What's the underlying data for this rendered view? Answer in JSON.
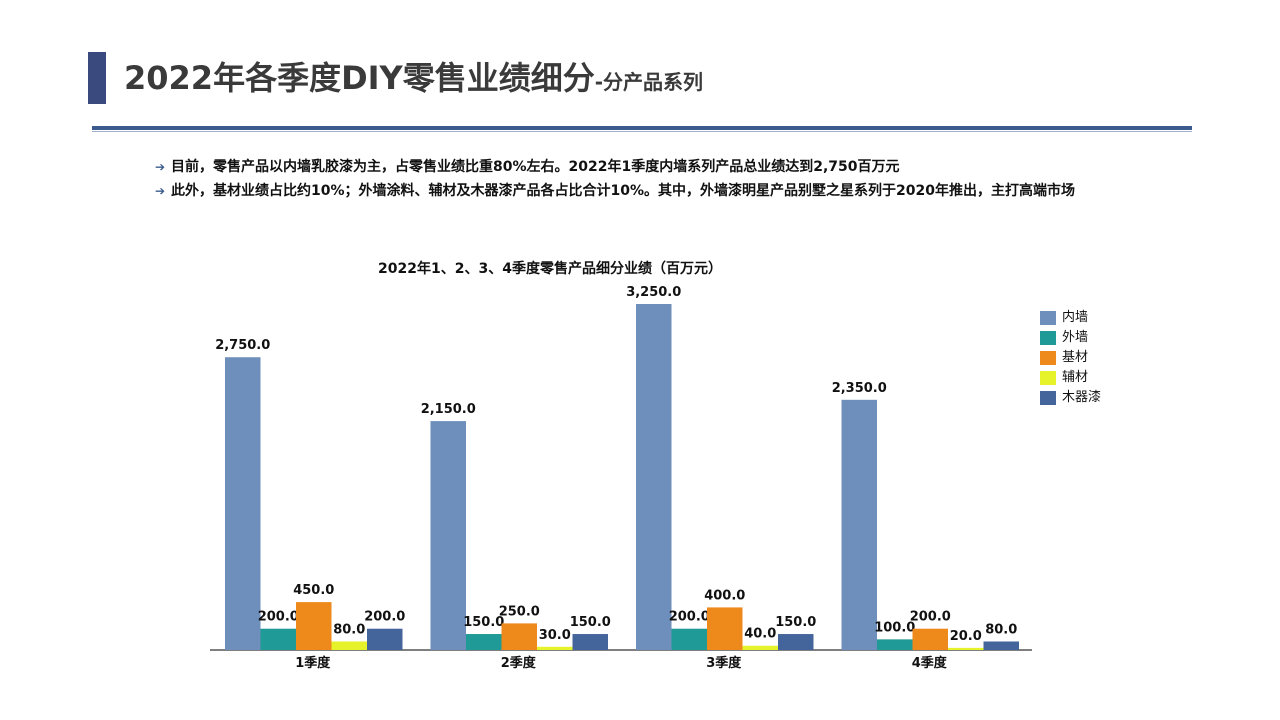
{
  "header": {
    "title_main": "2022年各季度DIY零售业绩细分",
    "title_sub": "-分产品系列"
  },
  "bullets": [
    "目前，零售产品以内墙乳胶漆为主，占零售业绩比重80%左右。2022年1季度内墙系列产品总业绩达到2,750百万元",
    "此外，基材业绩占比约10%；外墙涂料、辅材及木器漆产品各占比合计10%。其中，外墙漆明星产品别墅之星系列于2020年推出，主打高端市场"
  ],
  "chart_data": {
    "type": "bar",
    "title": "2022年1、2、3、4季度零售产品细分业绩（百万元）",
    "categories": [
      "1季度",
      "2季度",
      "3季度",
      "4季度"
    ],
    "series": [
      {
        "name": "内墙",
        "color": "#6e8fbb",
        "values": [
          2750,
          2150,
          3250,
          2350
        ]
      },
      {
        "name": "外墙",
        "color": "#1f9a96",
        "values": [
          200,
          150,
          200,
          100
        ]
      },
      {
        "name": "基材",
        "color": "#ee8a1c",
        "values": [
          450,
          250,
          400,
          200
        ]
      },
      {
        "name": "辅材",
        "color": "#e6f22a",
        "values": [
          80,
          30,
          40,
          20
        ]
      },
      {
        "name": "木器漆",
        "color": "#44659b",
        "values": [
          200,
          150,
          150,
          80
        ]
      }
    ],
    "value_format": "0.0",
    "ylim": [
      0,
      3300
    ],
    "grid": false,
    "legend_position": "right"
  }
}
